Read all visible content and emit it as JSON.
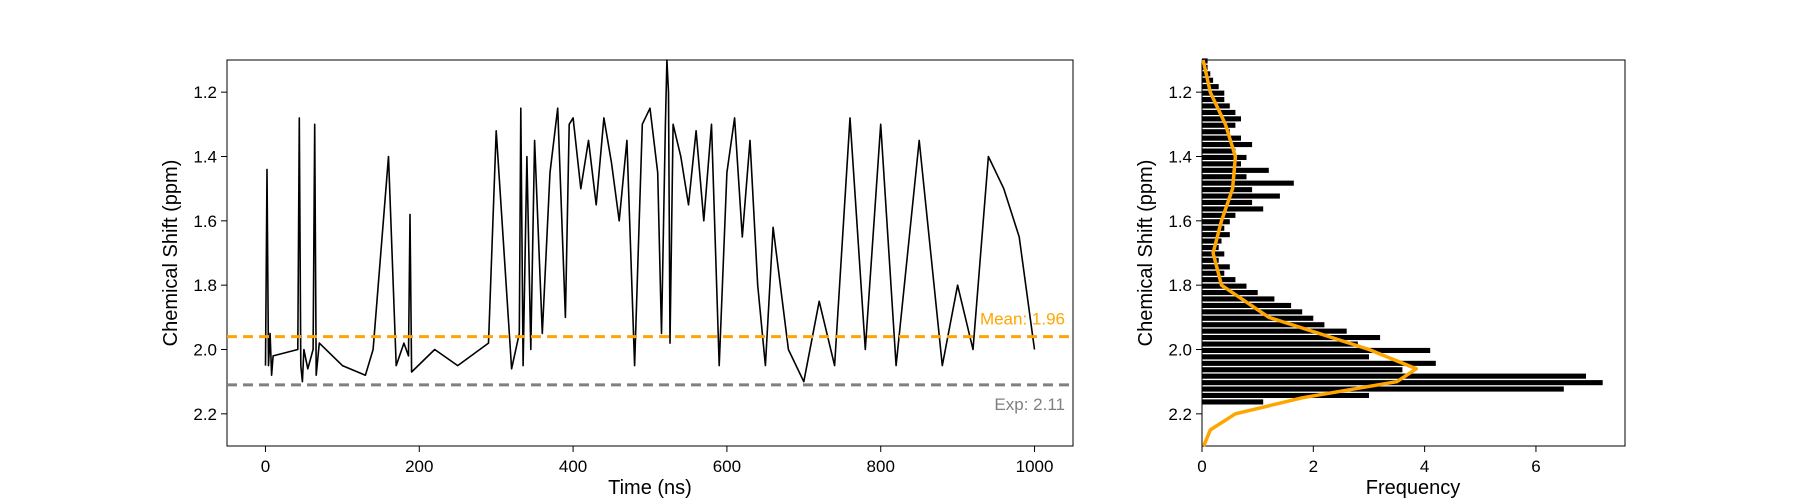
{
  "chart_data": [
    {
      "type": "line",
      "xlabel": "Time (ns)",
      "ylabel": "Chemical Shift (ppm)",
      "xlim": [
        -50,
        1050
      ],
      "ylim": [
        2.3,
        1.1
      ],
      "y_inverted": true,
      "xticks": [
        0,
        200,
        400,
        600,
        800,
        1000
      ],
      "xtick_labels": [
        "0",
        "200",
        "400",
        "600",
        "800",
        "1000"
      ],
      "yticks": [
        1.2,
        1.4,
        1.6,
        1.8,
        2.0,
        2.2
      ],
      "ytick_labels": [
        "1.2",
        "1.4",
        "1.6",
        "1.8",
        "2.0",
        "2.2"
      ],
      "series": [
        {
          "color": "#000000",
          "x": [
            0,
            2,
            4,
            6,
            8,
            10,
            42,
            44,
            46,
            48,
            50,
            55,
            62,
            64,
            66,
            70,
            100,
            130,
            140,
            160,
            170,
            180,
            186,
            188,
            190,
            220,
            250,
            290,
            300,
            320,
            330,
            332,
            335,
            340,
            345,
            350,
            360,
            370,
            380,
            390,
            395,
            400,
            410,
            420,
            430,
            440,
            450,
            460,
            470,
            480,
            490,
            500,
            510,
            515,
            520,
            522,
            524,
            526,
            530,
            540,
            550,
            560,
            570,
            580,
            590,
            600,
            610,
            620,
            630,
            640,
            650,
            660,
            680,
            700,
            720,
            740,
            760,
            780,
            800,
            820,
            850,
            880,
            900,
            920,
            940,
            960,
            980,
            1000
          ],
          "values": [
            2.05,
            1.44,
            2.05,
            1.95,
            2.08,
            2.02,
            2.0,
            1.28,
            2.05,
            2.1,
            2.0,
            2.06,
            2.0,
            1.3,
            2.08,
            1.98,
            2.05,
            2.08,
            2.0,
            1.4,
            2.05,
            1.98,
            2.02,
            1.58,
            2.07,
            2.0,
            2.05,
            1.98,
            1.32,
            2.06,
            1.95,
            1.25,
            2.05,
            1.4,
            2.0,
            1.35,
            1.95,
            1.45,
            1.25,
            1.9,
            1.3,
            1.28,
            1.5,
            1.35,
            1.55,
            1.28,
            1.42,
            1.6,
            1.35,
            2.05,
            1.3,
            1.25,
            1.45,
            1.95,
            1.3,
            1.1,
            1.2,
            1.98,
            1.3,
            1.4,
            1.55,
            1.32,
            1.6,
            1.3,
            2.05,
            1.45,
            1.28,
            1.65,
            1.35,
            1.8,
            2.05,
            1.62,
            2.0,
            2.1,
            1.85,
            2.05,
            1.28,
            2.0,
            1.3,
            2.05,
            1.35,
            2.05,
            1.8,
            2.0,
            1.4,
            1.5,
            1.65,
            2.0
          ]
        }
      ],
      "annotations": [
        {
          "kind": "hline",
          "y": 1.96,
          "color": "#FFA500",
          "label": "Mean: 1.96"
        },
        {
          "kind": "hline",
          "y": 2.11,
          "color": "#808080",
          "label": "Exp: 2.11"
        }
      ]
    },
    {
      "type": "bar",
      "orientation": "horizontal",
      "xlabel": "Frequency",
      "ylabel": "Chemical Shift (ppm)",
      "xlim": [
        0,
        7.6
      ],
      "ylim": [
        2.3,
        1.1
      ],
      "y_inverted": true,
      "xticks": [
        0,
        2,
        4,
        6
      ],
      "xtick_labels": [
        "0",
        "2",
        "4",
        "6"
      ],
      "yticks": [
        1.2,
        1.4,
        1.6,
        1.8,
        2.0,
        2.2
      ],
      "ytick_labels": [
        "1.2",
        "1.4",
        "1.6",
        "1.8",
        "2.0",
        "2.2"
      ],
      "bar_color": "#000000",
      "bin_centers": [
        1.105,
        1.125,
        1.145,
        1.165,
        1.185,
        1.205,
        1.225,
        1.245,
        1.265,
        1.285,
        1.305,
        1.325,
        1.345,
        1.365,
        1.385,
        1.405,
        1.425,
        1.445,
        1.465,
        1.485,
        1.505,
        1.525,
        1.545,
        1.565,
        1.585,
        1.605,
        1.625,
        1.645,
        1.665,
        1.685,
        1.705,
        1.725,
        1.745,
        1.765,
        1.785,
        1.805,
        1.825,
        1.845,
        1.865,
        1.885,
        1.905,
        1.925,
        1.945,
        1.965,
        1.985,
        2.005,
        2.025,
        2.045,
        2.065,
        2.085,
        2.105,
        2.125,
        2.145,
        2.165
      ],
      "frequencies": [
        0.1,
        0.1,
        0.15,
        0.2,
        0.3,
        0.4,
        0.4,
        0.5,
        0.6,
        0.7,
        0.6,
        0.5,
        0.7,
        0.9,
        0.6,
        0.8,
        0.7,
        1.2,
        0.8,
        1.65,
        0.9,
        1.4,
        0.9,
        1.1,
        0.6,
        0.5,
        0.4,
        0.5,
        0.35,
        0.3,
        0.4,
        0.3,
        0.5,
        0.4,
        0.6,
        0.8,
        1.0,
        1.3,
        1.6,
        1.8,
        2.0,
        2.2,
        2.6,
        3.2,
        2.8,
        4.1,
        3.0,
        4.2,
        3.6,
        6.9,
        7.2,
        6.5,
        3.0,
        1.1
      ],
      "fit_curve": {
        "type": "double-gaussian",
        "color": "#FFA500",
        "x_at_y": [
          [
            1.1,
            0.02
          ],
          [
            1.2,
            0.15
          ],
          [
            1.3,
            0.42
          ],
          [
            1.4,
            0.6
          ],
          [
            1.5,
            0.55
          ],
          [
            1.6,
            0.35
          ],
          [
            1.7,
            0.2
          ],
          [
            1.8,
            0.35
          ],
          [
            1.9,
            1.2
          ],
          [
            2.0,
            3.0
          ],
          [
            2.06,
            3.85
          ],
          [
            2.1,
            3.5
          ],
          [
            2.15,
            1.8
          ],
          [
            2.2,
            0.6
          ],
          [
            2.25,
            0.15
          ],
          [
            2.3,
            0.03
          ]
        ]
      }
    }
  ]
}
